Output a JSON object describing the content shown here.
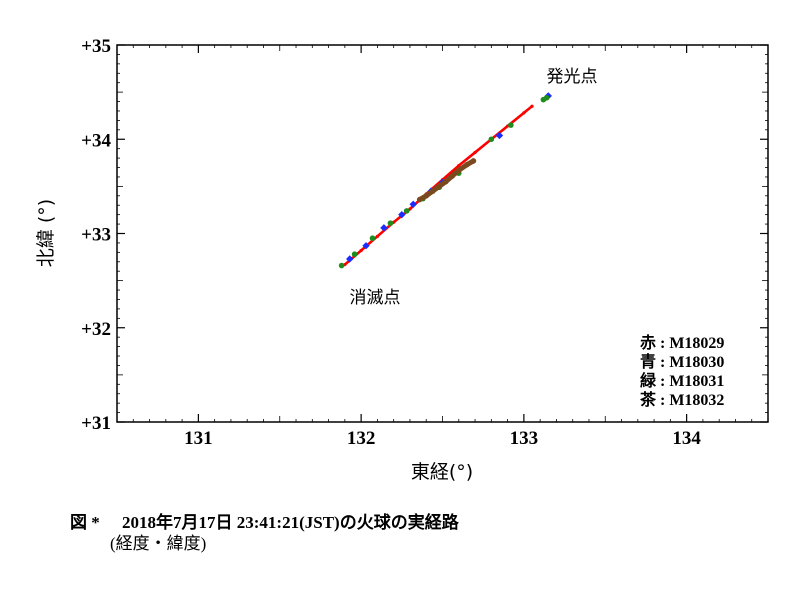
{
  "chart_data": {
    "type": "scatter",
    "xlabel": "東経(°)",
    "ylabel": "北緯 (°)",
    "xlim": [
      130.5,
      134.5
    ],
    "ylim": [
      31,
      35
    ],
    "x_ticks": [
      131,
      132,
      133,
      134
    ],
    "x_tick_labels": [
      "131",
      "132",
      "133",
      "134"
    ],
    "y_ticks": [
      31,
      32,
      33,
      34,
      35
    ],
    "y_tick_labels": [
      "+31",
      "+32",
      "+33",
      "+34",
      "+35"
    ],
    "grid": false,
    "legend_position": "bottom-right",
    "legend": [
      {
        "label": "赤 : M18029",
        "color": "#ff0000"
      },
      {
        "label": "青 : M18030",
        "color": "#1a2cff"
      },
      {
        "label": "緑 : M18031",
        "color": "#1e8c1e"
      },
      {
        "label": "茶 : M18032",
        "color": "#7a4a1e"
      }
    ],
    "annotations": [
      {
        "text": "発光点",
        "x": 133.35,
        "y": 34.7
      },
      {
        "text": "消滅点",
        "x": 131.95,
        "y": 32.3
      }
    ],
    "series": [
      {
        "color": "#ff0000",
        "points": [
          [
            131.9,
            32.67
          ],
          [
            132.0,
            32.82
          ],
          [
            132.1,
            32.97
          ],
          [
            132.2,
            33.12
          ],
          [
            132.3,
            33.26
          ],
          [
            132.4,
            33.42
          ],
          [
            132.5,
            33.57
          ],
          [
            132.6,
            33.72
          ],
          [
            132.7,
            33.86
          ],
          [
            132.8,
            34.0
          ],
          [
            132.9,
            34.14
          ],
          [
            133.0,
            34.28
          ],
          [
            133.05,
            34.35
          ]
        ]
      },
      {
        "color": "#1a2cff",
        "points": [
          [
            131.93,
            32.73
          ],
          [
            132.03,
            32.87
          ],
          [
            132.14,
            33.06
          ],
          [
            132.25,
            33.2
          ],
          [
            132.32,
            33.31
          ],
          [
            132.43,
            33.45
          ],
          [
            132.5,
            33.54
          ],
          [
            132.85,
            34.04
          ],
          [
            133.15,
            34.46
          ]
        ]
      },
      {
        "color": "#1e8c1e",
        "points": [
          [
            131.88,
            32.66
          ],
          [
            131.96,
            32.78
          ],
          [
            132.07,
            32.95
          ],
          [
            132.18,
            33.11
          ],
          [
            132.28,
            33.24
          ],
          [
            132.38,
            33.37
          ],
          [
            132.48,
            33.49
          ],
          [
            132.6,
            33.64
          ],
          [
            132.8,
            34.0
          ],
          [
            132.92,
            34.15
          ],
          [
            133.12,
            34.42
          ],
          [
            133.14,
            34.44
          ]
        ]
      },
      {
        "color": "#7a4a1e",
        "points": [
          [
            132.36,
            33.36
          ],
          [
            132.4,
            33.4
          ],
          [
            132.44,
            33.45
          ],
          [
            132.48,
            33.5
          ],
          [
            132.52,
            33.55
          ],
          [
            132.56,
            33.61
          ],
          [
            132.6,
            33.67
          ],
          [
            132.65,
            33.73
          ],
          [
            132.69,
            33.77
          ]
        ]
      }
    ]
  },
  "caption": {
    "label": "図 *",
    "title": "2018年7月17日 23:41:21(JST)の火球の実経路",
    "subtitle": "(経度・緯度)"
  }
}
